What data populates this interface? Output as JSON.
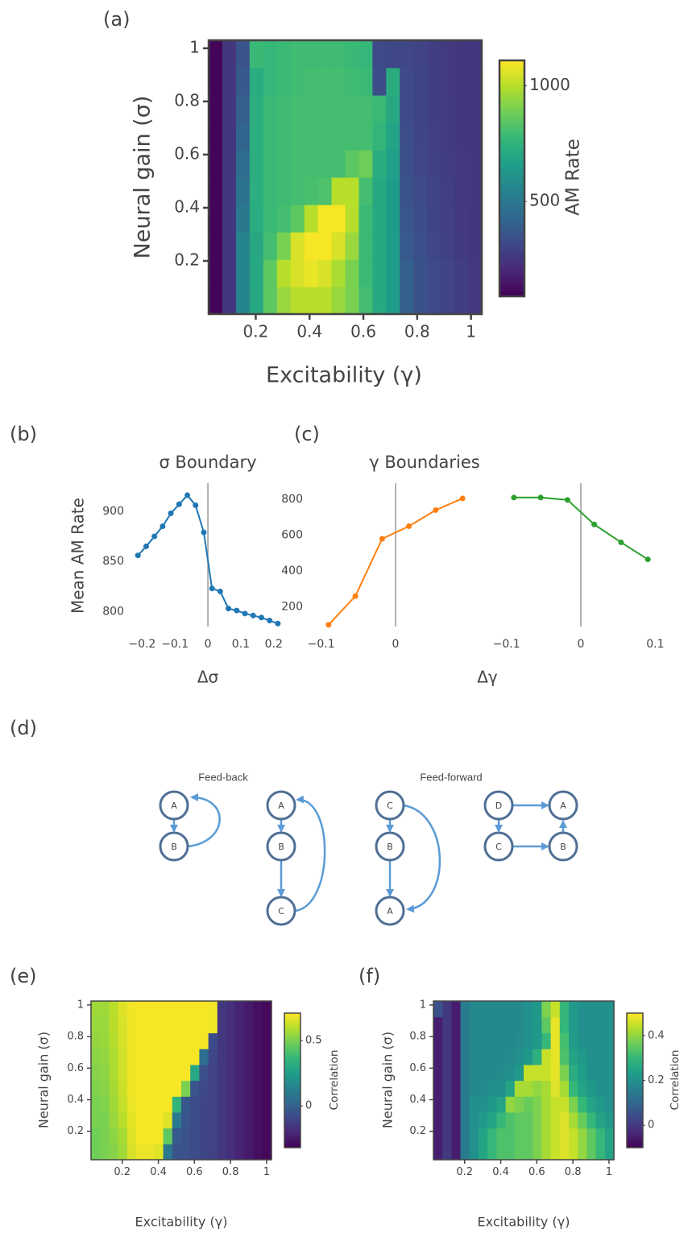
{
  "chart_data": [
    {
      "type": "heatmap",
      "panel_label": "(a)",
      "xlabel": "Excitability (γ)",
      "ylabel": "Neural gain (σ)",
      "colorbar_title": "AM Rate",
      "colorscale": "Viridis",
      "xlim": [
        0.025,
        1.04
      ],
      "ylim": [
        0,
        1.03
      ],
      "xticks": [
        0.2,
        0.4,
        0.6,
        0.8,
        1
      ],
      "yticks": [
        0.2,
        0.4,
        0.6,
        0.8,
        1
      ],
      "zlim": [
        90,
        1110
      ],
      "cticks": [
        500,
        1000
      ],
      "z": [
        [
          100,
          250,
          550,
          700,
          850,
          950,
          1000,
          1000,
          1000,
          950,
          900,
          800,
          700,
          650,
          400,
          350,
          320,
          300,
          280,
          260
        ],
        [
          100,
          250,
          550,
          700,
          850,
          1000,
          1050,
          1080,
          1050,
          980,
          900,
          780,
          700,
          650,
          400,
          350,
          320,
          300,
          280,
          260
        ],
        [
          100,
          250,
          550,
          700,
          800,
          900,
          1050,
          1100,
          1100,
          1050,
          950,
          780,
          700,
          650,
          380,
          340,
          310,
          290,
          270,
          255
        ],
        [
          100,
          250,
          500,
          720,
          780,
          800,
          850,
          1000,
          1100,
          1100,
          1000,
          780,
          700,
          650,
          360,
          330,
          300,
          285,
          265,
          250
        ],
        [
          100,
          250,
          480,
          730,
          780,
          790,
          800,
          810,
          820,
          1000,
          1000,
          800,
          700,
          650,
          350,
          320,
          300,
          280,
          260,
          250
        ],
        [
          100,
          250,
          450,
          730,
          780,
          790,
          800,
          800,
          800,
          800,
          850,
          880,
          720,
          660,
          340,
          310,
          290,
          275,
          260,
          250
        ],
        [
          100,
          250,
          420,
          730,
          780,
          790,
          800,
          800,
          800,
          800,
          800,
          800,
          760,
          680,
          330,
          305,
          285,
          270,
          258,
          250
        ],
        [
          100,
          250,
          400,
          730,
          780,
          790,
          800,
          800,
          800,
          800,
          800,
          800,
          780,
          700,
          320,
          300,
          280,
          268,
          255,
          250
        ],
        [
          100,
          250,
          380,
          720,
          770,
          780,
          790,
          800,
          800,
          800,
          790,
          780,
          330,
          720,
          320,
          300,
          280,
          265,
          255,
          250
        ],
        [
          100,
          250,
          360,
          780,
          770,
          780,
          790,
          790,
          790,
          790,
          780,
          770,
          320,
          310,
          310,
          295,
          280,
          265,
          255,
          248
        ]
      ]
    },
    {
      "type": "line",
      "panel_label": "(b)",
      "title": "σ Boundary",
      "xlabel": "Δσ",
      "ylabel": "Mean AM Rate",
      "color": "#1f77b4",
      "x": [
        -0.2125,
        -0.1875,
        -0.1625,
        -0.1375,
        -0.1125,
        -0.0875,
        -0.0625,
        -0.0375,
        -0.0125,
        0.0125,
        0.0375,
        0.0625,
        0.0875,
        0.1125,
        0.1375,
        0.1625,
        0.1875,
        0.2125
      ],
      "values": [
        856,
        865,
        875,
        885,
        898,
        907,
        916,
        906,
        879,
        823,
        820,
        803,
        801,
        798,
        796,
        794,
        791,
        788
      ],
      "xlim": [
        -0.24,
        0.225
      ],
      "xticks": [
        {
          "value": -0.2,
          "label": "−0.2"
        },
        {
          "value": -0.1,
          "label": "−0.1"
        },
        0,
        0.1,
        0.2
      ],
      "ylim": [
        785,
        928
      ],
      "yticks": [
        800,
        850,
        900
      ]
    },
    {
      "type": "line",
      "panel_label": "(c)",
      "title": "γ Boundaries",
      "xlabel": "Δγ",
      "ylim": [
        90,
        890
      ],
      "yticks": [
        200,
        400,
        600,
        800
      ],
      "subplots": [
        {
          "color": "#ff7f0e",
          "x": [
            -0.09,
            -0.054,
            -0.018,
            0.018,
            0.054,
            0.09
          ],
          "values": [
            100,
            260,
            580,
            650,
            740,
            805
          ],
          "xlim": [
            -0.118,
            0.118
          ],
          "xticks": [
            {
              "value": -0.1,
              "label": "−0.1"
            },
            0
          ]
        },
        {
          "color": "#2ca02c",
          "x": [
            -0.09,
            -0.054,
            -0.018,
            0.018,
            0.054,
            0.09
          ],
          "values": [
            810,
            810,
            797,
            660,
            560,
            465
          ],
          "xlim": [
            -0.118,
            0.118
          ],
          "xticks": [
            {
              "value": -0.1,
              "label": "−0.1"
            },
            0,
            0.1
          ]
        }
      ]
    },
    {
      "type": "heatmap",
      "panel_label": "(e)",
      "xlabel": "Excitability (γ)",
      "ylabel": "Neural gain (σ)",
      "colorbar_title": "Correlation",
      "colorscale": "Viridis",
      "xlim": [
        0.027,
        1.027
      ],
      "ylim": [
        0.02,
        1.025
      ],
      "xticks": [
        0.2,
        0.4,
        0.6,
        0.8,
        1
      ],
      "yticks": [
        0.2,
        0.4,
        0.6,
        0.8,
        1
      ],
      "zlim": [
        -0.32,
        0.71
      ],
      "cticks": [
        0,
        0.5
      ],
      "z": [
        [
          0.48,
          0.5,
          0.52,
          0.56,
          0.65,
          0.68,
          0.68,
          0.66,
          0.1,
          -0.05,
          -0.06,
          -0.08,
          -0.1,
          -0.12,
          -0.15,
          -0.18,
          -0.22,
          -0.25,
          -0.28,
          -0.3
        ],
        [
          0.48,
          0.5,
          0.53,
          0.57,
          0.66,
          0.7,
          0.7,
          0.7,
          0.45,
          -0.03,
          -0.06,
          -0.08,
          -0.1,
          -0.12,
          -0.15,
          -0.18,
          -0.22,
          -0.25,
          -0.28,
          -0.3
        ],
        [
          0.5,
          0.5,
          0.55,
          0.6,
          0.67,
          0.7,
          0.7,
          0.7,
          0.66,
          0.1,
          -0.05,
          -0.08,
          -0.1,
          -0.12,
          -0.15,
          -0.18,
          -0.22,
          -0.25,
          -0.28,
          -0.3
        ],
        [
          0.5,
          0.51,
          0.56,
          0.62,
          0.68,
          0.7,
          0.7,
          0.7,
          0.7,
          0.35,
          -0.04,
          -0.08,
          -0.1,
          -0.12,
          -0.15,
          -0.18,
          -0.22,
          -0.25,
          -0.28,
          -0.3
        ],
        [
          0.51,
          0.52,
          0.57,
          0.63,
          0.69,
          0.7,
          0.7,
          0.7,
          0.7,
          0.7,
          0.5,
          -0.05,
          -0.09,
          -0.12,
          -0.15,
          -0.18,
          -0.22,
          -0.25,
          -0.28,
          -0.3
        ],
        [
          0.52,
          0.53,
          0.58,
          0.64,
          0.69,
          0.7,
          0.7,
          0.7,
          0.7,
          0.7,
          0.7,
          0.3,
          -0.07,
          -0.12,
          -0.15,
          -0.18,
          -0.22,
          -0.25,
          -0.28,
          -0.3
        ],
        [
          0.53,
          0.54,
          0.58,
          0.64,
          0.69,
          0.7,
          0.7,
          0.7,
          0.7,
          0.7,
          0.7,
          0.7,
          0.05,
          -0.1,
          -0.15,
          -0.18,
          -0.22,
          -0.25,
          -0.28,
          -0.3
        ],
        [
          0.54,
          0.55,
          0.59,
          0.65,
          0.69,
          0.7,
          0.7,
          0.7,
          0.7,
          0.7,
          0.7,
          0.7,
          0.7,
          -0.08,
          -0.15,
          -0.18,
          -0.22,
          -0.25,
          -0.28,
          -0.3
        ],
        [
          0.55,
          0.55,
          0.6,
          0.65,
          0.69,
          0.7,
          0.7,
          0.7,
          0.7,
          0.7,
          0.7,
          0.7,
          0.7,
          0.69,
          -0.15,
          -0.18,
          -0.22,
          -0.25,
          -0.28,
          -0.3
        ],
        [
          0.56,
          0.56,
          0.6,
          0.66,
          0.69,
          0.7,
          0.7,
          0.7,
          0.7,
          0.7,
          0.7,
          0.7,
          0.7,
          0.69,
          -0.15,
          -0.18,
          -0.22,
          -0.25,
          -0.28,
          -0.3
        ]
      ]
    },
    {
      "type": "heatmap",
      "panel_label": "(f)",
      "xlabel": "Excitability (γ)",
      "ylabel": "Neural gain (σ)",
      "colorbar_title": "Correlation",
      "colorscale": "Viridis",
      "xlim": [
        0.027,
        1.027
      ],
      "ylim": [
        0.02,
        1.025
      ],
      "xticks": [
        0.2,
        0.4,
        0.6,
        0.8,
        1
      ],
      "yticks": [
        0.2,
        0.4,
        0.6,
        0.8,
        1
      ],
      "zlim": [
        -0.1,
        0.5
      ],
      "cticks": [
        0,
        0.2,
        0.4
      ],
      "z": [
        [
          -0.05,
          0.0,
          -0.05,
          0.15,
          0.2,
          0.25,
          0.3,
          0.33,
          0.33,
          0.35,
          0.35,
          0.38,
          0.42,
          0.45,
          0.47,
          0.45,
          0.4,
          0.35,
          0.3,
          0.25
        ],
        [
          -0.05,
          0.0,
          -0.05,
          0.15,
          0.2,
          0.25,
          0.3,
          0.33,
          0.33,
          0.35,
          0.35,
          0.38,
          0.42,
          0.45,
          0.47,
          0.45,
          0.4,
          0.35,
          0.3,
          0.25
        ],
        [
          -0.05,
          0.0,
          -0.05,
          0.15,
          0.2,
          0.22,
          0.25,
          0.3,
          0.33,
          0.35,
          0.35,
          0.38,
          0.42,
          0.45,
          0.47,
          0.42,
          0.36,
          0.3,
          0.25,
          0.22
        ],
        [
          -0.05,
          0.0,
          -0.05,
          0.15,
          0.2,
          0.2,
          0.22,
          0.25,
          0.4,
          0.38,
          0.36,
          0.38,
          0.42,
          0.45,
          0.45,
          0.38,
          0.3,
          0.25,
          0.22,
          0.2
        ],
        [
          -0.05,
          0.0,
          -0.05,
          0.15,
          0.18,
          0.18,
          0.2,
          0.2,
          0.25,
          0.42,
          0.42,
          0.4,
          0.42,
          0.47,
          0.42,
          0.3,
          0.25,
          0.22,
          0.2,
          0.2
        ],
        [
          -0.05,
          0.0,
          -0.05,
          0.15,
          0.18,
          0.18,
          0.18,
          0.19,
          0.2,
          0.22,
          0.45,
          0.45,
          0.45,
          0.48,
          0.38,
          0.27,
          0.23,
          0.2,
          0.2,
          0.2
        ],
        [
          -0.05,
          0.0,
          -0.05,
          0.15,
          0.18,
          0.18,
          0.18,
          0.18,
          0.19,
          0.2,
          0.22,
          0.28,
          0.45,
          0.48,
          0.33,
          0.25,
          0.22,
          0.2,
          0.2,
          0.2
        ],
        [
          -0.05,
          0.0,
          -0.05,
          0.15,
          0.18,
          0.18,
          0.18,
          0.18,
          0.18,
          0.19,
          0.2,
          0.22,
          0.3,
          0.48,
          0.32,
          0.23,
          0.2,
          0.2,
          0.2,
          0.2
        ],
        [
          -0.05,
          0.0,
          -0.05,
          0.15,
          0.18,
          0.18,
          0.18,
          0.18,
          0.18,
          0.18,
          0.2,
          0.22,
          0.35,
          0.48,
          0.3,
          0.22,
          0.2,
          0.2,
          0.2,
          0.2
        ],
        [
          0.05,
          0.0,
          -0.05,
          0.15,
          0.18,
          0.18,
          0.18,
          0.18,
          0.18,
          0.18,
          0.2,
          0.22,
          0.38,
          0.45,
          0.3,
          0.22,
          0.2,
          0.2,
          0.2,
          0.2
        ]
      ]
    }
  ],
  "diagram": {
    "panel_label": "(d)",
    "groups": [
      {
        "label": "Feed-back"
      },
      {
        "label": "Feed-forward"
      }
    ],
    "nodes": [
      "A",
      "B",
      "A",
      "B",
      "C",
      "C",
      "B",
      "A",
      "D",
      "A",
      "C",
      "B"
    ]
  }
}
